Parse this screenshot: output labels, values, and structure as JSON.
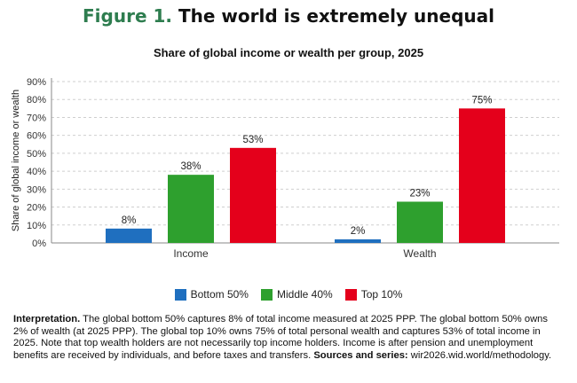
{
  "figure": {
    "number": "Figure 1.",
    "title": "The world is extremely unequal"
  },
  "colors": {
    "title_green": "#2e7d4f",
    "bottom50": "#1f6fbf",
    "middle40": "#2ea02e",
    "top10": "#e4001b"
  },
  "chart_data": {
    "type": "bar",
    "title": "Share of global income or wealth per group, 2025",
    "ylabel": "Share of global income or wealth",
    "xlabel": "",
    "categories": [
      "Income",
      "Wealth"
    ],
    "ylim": [
      0,
      90
    ],
    "yticks": [
      "0%",
      "10%",
      "20%",
      "30%",
      "40%",
      "50%",
      "60%",
      "70%",
      "80%",
      "90%"
    ],
    "grid": true,
    "legend_position": "bottom",
    "series": [
      {
        "name": "Bottom 50%",
        "values": [
          8,
          2
        ],
        "labels": [
          "8%",
          "2%"
        ],
        "color": "#1f6fbf"
      },
      {
        "name": "Middle 40%",
        "values": [
          38,
          23
        ],
        "labels": [
          "38%",
          "23%"
        ],
        "color": "#2ea02e"
      },
      {
        "name": "Top 10%",
        "values": [
          53,
          75
        ],
        "labels": [
          "53%",
          "75%"
        ],
        "color": "#e4001b"
      }
    ]
  },
  "note": {
    "interpretation_label": "Interpretation.",
    "interpretation_text": " The global bottom 50% captures 8% of total income measured at 2025 PPP. The global bottom 50% owns 2% of wealth (at 2025 PPP). The global top 10% owns 75% of total personal wealth and captures 53% of total income in 2025. Note that top wealth holders are not necessarily top income holders. Income is after pension and unemployment benefits are received by individuals, and before taxes and transfers. ",
    "sources_label": "Sources and series:",
    "sources_text": " wir2026.wid.world/methodology."
  }
}
